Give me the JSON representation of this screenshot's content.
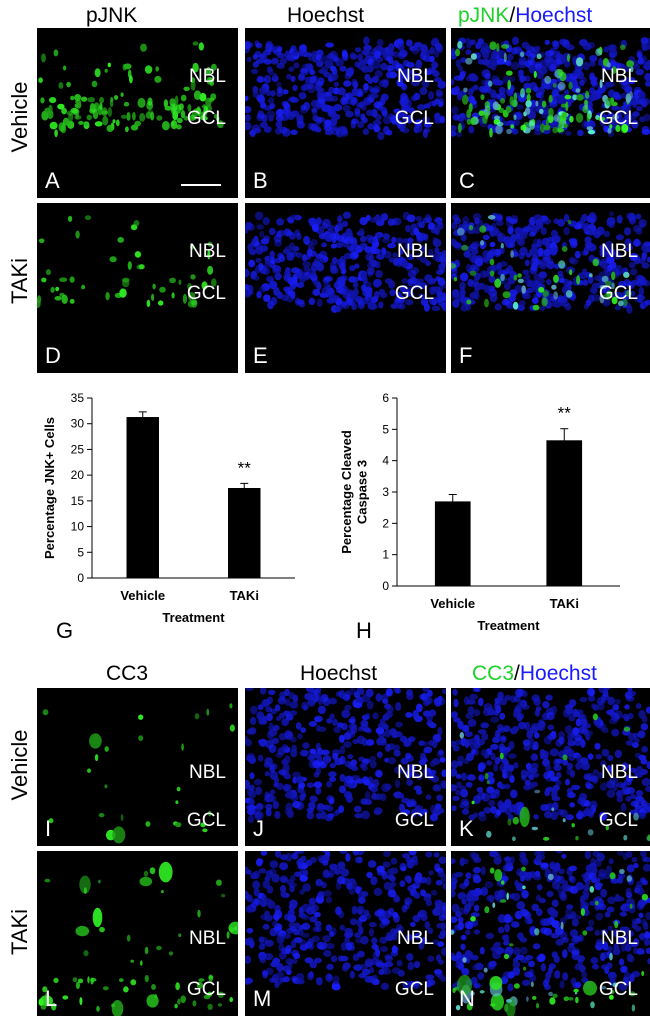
{
  "top_block": {
    "headers": [
      "pJNK",
      "Hoechst"
    ],
    "merged_header": {
      "marker": "pJNK",
      "sep": "/",
      "stain": "Hoechst"
    },
    "rows": [
      {
        "label": "Vehicle",
        "panels": [
          {
            "letter": "A",
            "nbl": "NBL",
            "gcl": "GCL",
            "channel": "green",
            "level": 0.8
          },
          {
            "letter": "B",
            "nbl": "NBL",
            "gcl": "GCL",
            "channel": "blue",
            "level": 0.8
          },
          {
            "letter": "C",
            "nbl": "NBL",
            "gcl": "GCL",
            "channel": "merge",
            "level": 0.8
          }
        ]
      },
      {
        "label": "TAKi",
        "panels": [
          {
            "letter": "D",
            "nbl": "NBL",
            "gcl": "GCL",
            "channel": "green",
            "level": 0.3
          },
          {
            "letter": "E",
            "nbl": "NBL",
            "gcl": "GCL",
            "channel": "blue",
            "level": 0.9
          },
          {
            "letter": "F",
            "nbl": "NBL",
            "gcl": "GCL",
            "channel": "merge",
            "level": 0.3
          }
        ]
      }
    ]
  },
  "bottom_block": {
    "headers": [
      "CC3",
      "Hoechst"
    ],
    "merged_header": {
      "marker": "CC3",
      "sep": "/",
      "stain": "Hoechst"
    },
    "rows": [
      {
        "label": "Vehicle",
        "panels": [
          {
            "letter": "I",
            "nbl": "NBL",
            "gcl": "GCL",
            "channel": "green",
            "level": 0.15
          },
          {
            "letter": "J",
            "nbl": "NBL",
            "gcl": "GCL",
            "channel": "blue",
            "level": 0.9
          },
          {
            "letter": "K",
            "nbl": "NBL",
            "gcl": "GCL",
            "channel": "merge",
            "level": 0.15
          }
        ]
      },
      {
        "label": "TAKi",
        "panels": [
          {
            "letter": "L",
            "nbl": "NBL",
            "gcl": "GCL",
            "channel": "green",
            "level": 0.4
          },
          {
            "letter": "M",
            "nbl": "NBL",
            "gcl": "GCL",
            "channel": "blue",
            "level": 0.9
          },
          {
            "letter": "N",
            "nbl": "NBL",
            "gcl": "GCL",
            "channel": "merge",
            "level": 0.4
          }
        ]
      }
    ]
  },
  "colors": {
    "green": "#1fd12b",
    "blue": "#1a1aff",
    "bar": "#000000"
  },
  "chart_data": [
    {
      "type": "bar",
      "panel_letter": "G",
      "categories": [
        "Vehicle",
        "TAKi"
      ],
      "values": [
        31.3,
        17.5
      ],
      "errors": [
        1.0,
        0.9
      ],
      "significance": [
        "",
        "**"
      ],
      "xlabel": "Treatment",
      "ylabel": "Percentage JNK+ Cells",
      "ylim": [
        0,
        35
      ],
      "yticks": [
        0,
        5,
        10,
        15,
        20,
        25,
        30,
        35
      ],
      "grid": false
    },
    {
      "type": "bar",
      "panel_letter": "H",
      "categories": [
        "Vehicle",
        "TAKi"
      ],
      "values": [
        2.7,
        4.65
      ],
      "errors": [
        0.22,
        0.37
      ],
      "significance": [
        "",
        "**"
      ],
      "xlabel": "Treatment",
      "ylabel": "Percentage Cleaved Caspase 3",
      "ylabel_lines": [
        "Percentage Cleaved",
        "Caspase 3"
      ],
      "ylim": [
        0,
        6
      ],
      "yticks": [
        0,
        1,
        2,
        3,
        4,
        5,
        6
      ],
      "grid": false
    }
  ]
}
